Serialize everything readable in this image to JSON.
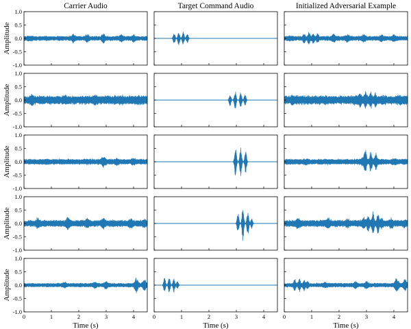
{
  "chart_data": {
    "type": "line",
    "layout": "grid",
    "rows": 5,
    "columns": 3,
    "column_titles": [
      "Carrier Audio",
      "Target Command Audio",
      "Initialized Adversarial Example"
    ],
    "ylabel": "Amplitude",
    "xlabel": "Time (s)",
    "xlim": [
      0,
      4.5
    ],
    "ylim": [
      -1.0,
      1.0
    ],
    "xticks": [
      0,
      1,
      2,
      3,
      4
    ],
    "xtick_labels": [
      "0",
      "1",
      "2",
      "3",
      "4"
    ],
    "yticks": [
      1.0,
      0.5,
      0.0,
      -0.5,
      -1.0
    ],
    "ytick_labels": [
      "1.0",
      "0.5",
      "0.0",
      "-0.5",
      "-1.0"
    ],
    "grid": false,
    "series_color": "#1f77b4",
    "carrier_rows": [
      {
        "base_amplitude": 0.09,
        "peaks": [
          {
            "t": 0.2,
            "a": 0.14
          },
          {
            "t": 1.8,
            "a": 0.2
          },
          {
            "t": 2.3,
            "a": 0.18
          },
          {
            "t": 2.9,
            "a": 0.2
          },
          {
            "t": 3.55,
            "a": 0.17
          },
          {
            "t": 4.0,
            "a": 0.17
          }
        ]
      },
      {
        "base_amplitude": 0.17,
        "peaks": [
          {
            "t": 0.3,
            "a": 0.25
          },
          {
            "t": 1.5,
            "a": 0.21
          },
          {
            "t": 2.6,
            "a": 0.22
          },
          {
            "t": 3.6,
            "a": 0.2
          },
          {
            "t": 4.2,
            "a": 0.21
          }
        ]
      },
      {
        "base_amplitude": 0.11,
        "peaks": [
          {
            "t": 0.8,
            "a": 0.14
          },
          {
            "t": 2.9,
            "a": 0.27
          },
          {
            "t": 3.4,
            "a": 0.16
          },
          {
            "t": 4.0,
            "a": 0.16
          }
        ]
      },
      {
        "base_amplitude": 0.13,
        "peaks": [
          {
            "t": 0.5,
            "a": 0.26
          },
          {
            "t": 1.6,
            "a": 0.27
          },
          {
            "t": 2.3,
            "a": 0.22
          },
          {
            "t": 2.9,
            "a": 0.26
          },
          {
            "t": 3.9,
            "a": 0.23
          },
          {
            "t": 4.4,
            "a": 0.2
          }
        ]
      },
      {
        "base_amplitude": 0.08,
        "peaks": [
          {
            "t": 1.5,
            "a": 0.14
          },
          {
            "t": 2.6,
            "a": 0.17
          },
          {
            "t": 3.0,
            "a": 0.18
          },
          {
            "t": 4.1,
            "a": 0.33
          },
          {
            "t": 4.4,
            "a": 0.26
          }
        ]
      }
    ],
    "command_rows": [
      {
        "bursts": [
          {
            "t": 0.73,
            "a": 0.22
          },
          {
            "t": 0.9,
            "a": 0.29
          },
          {
            "t": 1.06,
            "a": 0.26
          },
          {
            "t": 1.21,
            "a": 0.21
          }
        ]
      },
      {
        "bursts": [
          {
            "t": 2.77,
            "a": 0.24
          },
          {
            "t": 2.96,
            "a": 0.36
          },
          {
            "t": 3.16,
            "a": 0.31
          },
          {
            "t": 3.32,
            "a": 0.23
          }
        ]
      },
      {
        "bursts": [
          {
            "t": 2.97,
            "a": 0.55
          },
          {
            "t": 3.16,
            "a": 0.58
          },
          {
            "t": 3.34,
            "a": 0.41
          }
        ]
      },
      {
        "bursts": [
          {
            "t": 3.06,
            "a": 0.4
          },
          {
            "t": 3.24,
            "a": 0.62
          },
          {
            "t": 3.42,
            "a": 0.45
          },
          {
            "t": 3.56,
            "a": 0.2
          }
        ]
      },
      {
        "bursts": [
          {
            "t": 0.38,
            "a": 0.3
          },
          {
            "t": 0.55,
            "a": 0.32
          },
          {
            "t": 0.72,
            "a": 0.27
          },
          {
            "t": 0.85,
            "a": 0.16
          }
        ]
      }
    ]
  }
}
